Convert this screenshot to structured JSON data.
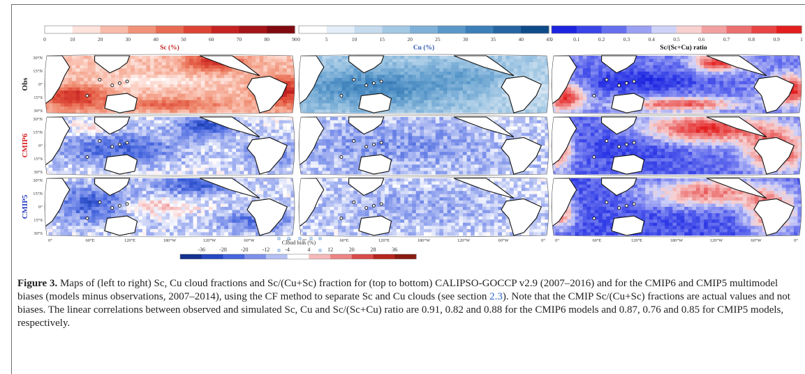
{
  "colorbars": [
    {
      "label": "Sc (%)",
      "label_color": "#c4201f",
      "ticks": [
        "0",
        "10",
        "20",
        "30",
        "40",
        "50",
        "60",
        "70",
        "80",
        "90"
      ],
      "colors": [
        "#ffffff",
        "#fde3dc",
        "#f8bba9",
        "#f19379",
        "#e86b53",
        "#dc4534",
        "#c62424",
        "#a51418",
        "#800a10"
      ]
    },
    {
      "label": "Cu (%)",
      "label_color": "#2a57b3",
      "ticks": [
        "0",
        "5",
        "10",
        "15",
        "20",
        "25",
        "30",
        "35",
        "40",
        "45"
      ],
      "colors": [
        "#ffffff",
        "#e3eef8",
        "#c6dcee",
        "#a3c8e4",
        "#7fb1d8",
        "#5a98ca",
        "#3c7fb9",
        "#2465a2",
        "#0e4c89"
      ]
    },
    {
      "label": "Sc/(Sc+Cu) ratio",
      "label_color": "#111111",
      "ticks": [
        "0",
        "0.1",
        "0.2",
        "0.3",
        "0.4",
        "0.5",
        "0.6",
        "0.7",
        "0.8",
        "0.9",
        "1"
      ],
      "colors": [
        "#1d24e0",
        "#3a45e8",
        "#6670ee",
        "#9aa0f2",
        "#cfd2f8",
        "#f8d0d0",
        "#f2a0a0",
        "#ec7070",
        "#e84444",
        "#e31e1e"
      ]
    }
  ],
  "rows": [
    {
      "label": "Obs",
      "color": "#222222"
    },
    {
      "label": "CMIP6",
      "color": "#d9242a"
    },
    {
      "label": "CMIP5",
      "color": "#2b3fbf"
    }
  ],
  "lat_ticks": [
    "30°N",
    "15°N",
    "0°",
    "15°S",
    "30°S"
  ],
  "lon_ticks": [
    "0°",
    "60°E",
    "120°E",
    "180°W",
    "120°W",
    "60°W",
    "0°"
  ],
  "bias_colorbar": {
    "label": "Cloud bias (%)",
    "ticks": [
      "-36",
      "-28",
      "-20",
      "-12",
      "-4",
      "4",
      "12",
      "20",
      "28",
      "36"
    ],
    "colors": [
      "#14308f",
      "#2547c0",
      "#4565dd",
      "#7b90ea",
      "#b4c0f3",
      "#ffffff",
      "#f6b8b8",
      "#ec8584",
      "#d84c4a",
      "#b5261f",
      "#8a1a10"
    ]
  },
  "caption": {
    "figure_label": "Figure 3.",
    "text_1": " Maps of (left to right) Sc, Cu cloud fractions and Sc/(Cu+Sc) fraction for (top to bottom) CALIPSO-GOCCP v2.9 (2007–2016) and for the CMIP6 and CMIP5 multimodel biases (models minus observations, 2007–2014), using the CF method to separate Sc and Cu clouds (see section ",
    "section_link": "2.3",
    "text_2": "). Note that the CMIP Sc/(Cu+Sc) fractions are actual values and not biases. The linear correlations between observed and simulated Sc, Cu and Sc/(Sc+Cu) ratio are 0.91, 0.82 and 0.88 for the CMIP6 models and 0.87, 0.76 and 0.85 for CMIP5 models, respectively."
  }
}
